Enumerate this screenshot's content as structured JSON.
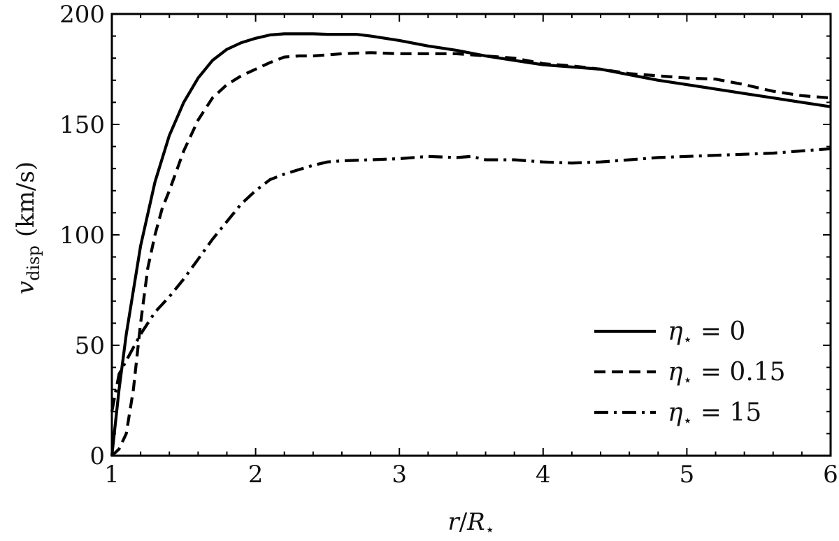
{
  "chart_data": {
    "type": "line",
    "xlabel": {
      "var": "r",
      "sep": "/",
      "base": "R",
      "sub": "⋆"
    },
    "ylabel": {
      "var": "v",
      "sub": "disp",
      "unit": "(km/s)"
    },
    "xlim": [
      1,
      6
    ],
    "ylim": [
      0,
      200
    ],
    "x_ticks": [
      1,
      2,
      3,
      4,
      5,
      6
    ],
    "y_ticks": [
      0,
      50,
      100,
      150,
      200
    ],
    "x_tick_labels": [
      "1",
      "2",
      "3",
      "4",
      "5",
      "6"
    ],
    "y_tick_labels": [
      "0",
      "50",
      "100",
      "150",
      "200"
    ],
    "grid": false,
    "ticks_inward": true,
    "legend_position": "bottom-right",
    "series": [
      {
        "name": "η⋆ = 0",
        "legend": {
          "sym": "η",
          "sub": "⋆",
          "rest": " = 0"
        },
        "style": "solid",
        "color": "#000000",
        "x": [
          1.0,
          1.05,
          1.1,
          1.2,
          1.3,
          1.4,
          1.5,
          1.6,
          1.7,
          1.8,
          1.9,
          2.0,
          2.1,
          2.2,
          2.3,
          2.4,
          2.5,
          2.6,
          2.7,
          2.8,
          3.0,
          3.2,
          3.4,
          3.6,
          3.8,
          4.0,
          4.2,
          4.4,
          4.6,
          4.8,
          5.0,
          5.2,
          5.4,
          5.6,
          5.8,
          6.0
        ],
        "y": [
          0,
          30,
          55,
          95,
          124,
          145,
          160,
          171,
          179,
          184,
          187,
          189,
          190.5,
          191,
          191,
          191,
          190.8,
          190.8,
          190.8,
          190,
          188,
          185.5,
          183.5,
          181,
          179,
          177,
          176,
          175,
          172.5,
          170,
          168,
          166,
          164,
          162,
          160,
          158
        ]
      },
      {
        "name": "η⋆ = 0.15",
        "legend": {
          "sym": "η",
          "sub": "⋆",
          "rest": " = 0.15"
        },
        "style": "dashed",
        "color": "#000000",
        "x": [
          1.0,
          1.05,
          1.1,
          1.15,
          1.2,
          1.25,
          1.3,
          1.35,
          1.4,
          1.5,
          1.6,
          1.7,
          1.8,
          1.9,
          2.0,
          2.1,
          2.2,
          2.3,
          2.4,
          2.5,
          2.6,
          2.8,
          3.0,
          3.2,
          3.4,
          3.6,
          3.8,
          4.0,
          4.2,
          4.4,
          4.6,
          4.8,
          5.0,
          5.2,
          5.4,
          5.6,
          5.8,
          6.0
        ],
        "y": [
          0,
          3,
          10,
          30,
          60,
          85,
          100,
          112,
          120,
          138,
          152,
          162,
          168,
          172,
          175,
          178,
          180.5,
          181,
          181,
          181.5,
          182,
          182.5,
          182,
          182,
          182,
          181,
          180,
          177.5,
          176.5,
          175,
          173,
          172,
          171,
          170.5,
          168,
          165,
          163,
          162
        ]
      },
      {
        "name": "η⋆ = 15",
        "legend": {
          "sym": "η",
          "sub": "⋆",
          "rest": " = 15"
        },
        "style": "dashdot",
        "color": "#000000",
        "x": [
          1.0,
          1.05,
          1.1,
          1.2,
          1.3,
          1.4,
          1.5,
          1.6,
          1.7,
          1.8,
          1.9,
          2.0,
          2.1,
          2.2,
          2.3,
          2.4,
          2.5,
          2.6,
          2.8,
          3.0,
          3.2,
          3.4,
          3.5,
          3.6,
          3.8,
          4.0,
          4.2,
          4.4,
          4.6,
          4.8,
          5.0,
          5.2,
          5.4,
          5.6,
          5.8,
          6.0
        ],
        "y": [
          20,
          37,
          43,
          55,
          65,
          72,
          80,
          89,
          98,
          106,
          114,
          120,
          125,
          127.5,
          129.5,
          131.5,
          133,
          133.5,
          134,
          134.5,
          135.5,
          135,
          135.5,
          134,
          134,
          133,
          132.5,
          133,
          134,
          135,
          135.5,
          136,
          136.5,
          137,
          138,
          139
        ]
      }
    ]
  }
}
